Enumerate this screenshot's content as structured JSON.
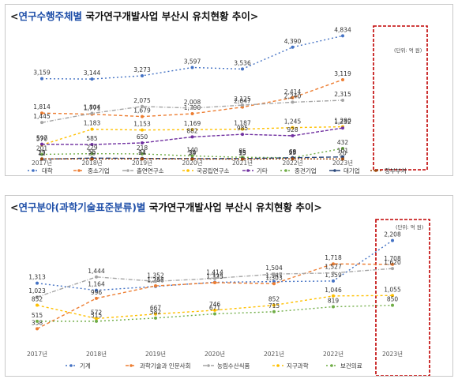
{
  "chart_data": [
    {
      "type": "line",
      "title_prefix": "<",
      "title_highlight": "연구수행주체별",
      "title_rest": " 국가연구개발사업 부산시 유치현황 추이",
      "title_suffix": ">",
      "unit_note": "(단위: 억 원)",
      "categories": [
        "2017년",
        "2018년",
        "2019년",
        "2020년",
        "2021년",
        "2022년",
        "2023년"
      ],
      "ylim": [
        0,
        5000
      ],
      "legend_position": "bottom",
      "highlight_category": "2023년",
      "series": [
        {
          "name": "대학",
          "color": "#4472c4",
          "dash": "2 3",
          "values": [
            3159,
            3144,
            3273,
            3597,
            3536,
            4390,
            4834
          ]
        },
        {
          "name": "중소기업",
          "color": "#ed7d31",
          "dash": "4 3",
          "values": [
            1814,
            1771,
            1679,
            1790,
            2047,
            2414,
            3119
          ]
        },
        {
          "name": "출연연구소",
          "color": "#a5a5a5",
          "dash": "5 2 1 2",
          "values": [
            1445,
            1804,
            2075,
            2008,
            2125,
            2240,
            2315
          ]
        },
        {
          "name": "국공립연구소",
          "color": "#ffc000",
          "dash": "3 3",
          "values": [
            570,
            1183,
            1153,
            1169,
            1187,
            1245,
            1280
          ]
        },
        {
          "name": "기타",
          "color": "#7030a0",
          "dash": "4 2",
          "values": [
            597,
            585,
            650,
            882,
            985,
            928,
            1232
          ]
        },
        {
          "name": "중견기업",
          "color": "#70ad47",
          "dash": "2 3",
          "values": [
            201,
            229,
            218,
            140,
            85,
            69,
            432
          ]
        },
        {
          "name": "대기업",
          "color": "#264478",
          "dash": "6 3",
          "values": [
            12,
            55,
            41,
            34,
            35,
            68,
            101
          ]
        },
        {
          "name": "정부부처",
          "color": "#9e480e",
          "dash": "2 2",
          "values": [
            25,
            20,
            24,
            20,
            15,
            25,
            20
          ]
        }
      ]
    },
    {
      "type": "line",
      "title_prefix": "<",
      "title_highlight": "연구분야(과학기술표준분류)별",
      "title_rest": " 국가연구개발사업 부산시 유치현황 추이",
      "title_suffix": ">",
      "unit_note": "(단위: 억 원)",
      "categories": [
        "2017년",
        "2018년",
        "2019년",
        "2020년",
        "2021년",
        "2022년",
        "2023년"
      ],
      "ylim": [
        0,
        2400
      ],
      "legend_position": "bottom",
      "highlight_category": "2023년",
      "series": [
        {
          "name": "기계",
          "color": "#4472c4",
          "dash": "2 3",
          "values": [
            1313,
            1164,
            1246,
            1333,
            1347,
            1359,
            2208
          ]
        },
        {
          "name": "과학기술과 인문사회",
          "color": "#ed7d31",
          "dash": "4 3",
          "values": [
            358,
            996,
            1257,
            1325,
            1303,
            1718,
            1708
          ]
        },
        {
          "name": "농림수산식품",
          "color": "#a5a5a5",
          "dash": "5 2 1 2",
          "values": [
            1023,
            1444,
            1352,
            1414,
            1504,
            1527,
            1620
          ]
        },
        {
          "name": "지구과학",
          "color": "#ffc000",
          "dash": "3 3",
          "values": [
            852,
            572,
            667,
            746,
            852,
            1046,
            1055
          ]
        },
        {
          "name": "보건의료",
          "color": "#70ad47",
          "dash": "2 3",
          "values": [
            515,
            515,
            582,
            671,
            715,
            819,
            850
          ]
        }
      ]
    }
  ]
}
